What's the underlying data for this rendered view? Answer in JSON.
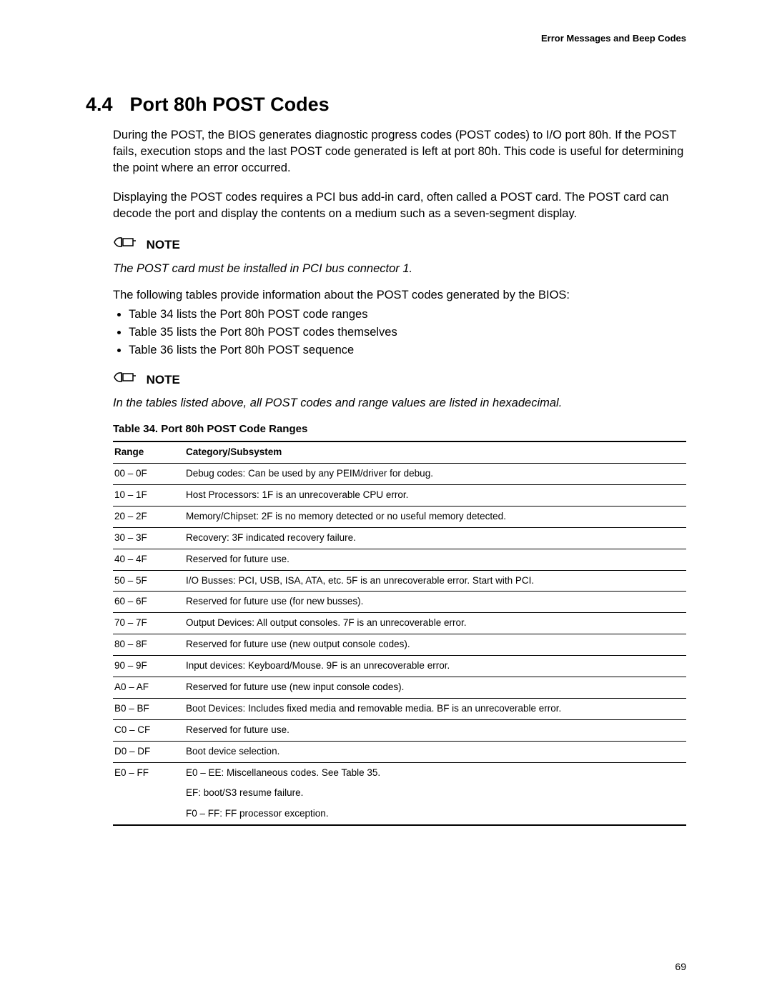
{
  "running_header": "Error Messages and Beep Codes",
  "section": {
    "number": "4.4",
    "title": "Port 80h POST Codes"
  },
  "paragraphs": {
    "p1": "During the POST, the BIOS generates diagnostic progress codes (POST codes) to I/O port 80h.  If the POST fails, execution stops and the last POST code generated is left at port 80h.  This code is useful for determining the point where an error occurred.",
    "p2": "Displaying the POST codes requires a PCI bus add-in card, often called a POST card.  The POST card can decode the port and display the contents on a medium such as a seven-segment display.",
    "p3": "The following tables provide information about the POST codes generated by the BIOS:"
  },
  "note_label": "NOTE",
  "note1_text": "The POST card must be installed in PCI bus connector 1.",
  "note2_text": "In the tables listed above, all POST codes and range values are listed in hexadecimal.",
  "bullets": [
    "Table 34 lists the Port 80h POST code ranges",
    "Table 35 lists the Port 80h POST codes themselves",
    "Table 36 lists the Port 80h POST sequence"
  ],
  "table": {
    "caption": "Table 34.  Port 80h POST Code Ranges",
    "headers": {
      "col1": "Range",
      "col2": "Category/Subsystem"
    },
    "rows": [
      {
        "range": "00 – 0F",
        "desc": "Debug codes:  Can be used by any PEIM/driver for debug."
      },
      {
        "range": "10 – 1F",
        "desc": "Host Processors:  1F is an unrecoverable CPU error."
      },
      {
        "range": "20 – 2F",
        "desc": "Memory/Chipset:  2F is no memory detected or no useful memory detected."
      },
      {
        "range": "30 – 3F",
        "desc": "Recovery:  3F indicated recovery failure."
      },
      {
        "range": "40 – 4F",
        "desc": "Reserved for future use."
      },
      {
        "range": "50 – 5F",
        "desc": "I/O Busses:  PCI, USB, ISA, ATA, etc.  5F is an unrecoverable error.  Start with PCI."
      },
      {
        "range": "60 – 6F",
        "desc": "Reserved for future use (for new busses)."
      },
      {
        "range": "70 – 7F",
        "desc": "Output Devices:  All output consoles. 7F is an unrecoverable error."
      },
      {
        "range": "80 – 8F",
        "desc": "Reserved for future use (new output console codes)."
      },
      {
        "range": "90 – 9F",
        "desc": "Input devices:  Keyboard/Mouse.  9F is an unrecoverable error."
      },
      {
        "range": "A0 – AF",
        "desc": "Reserved for future use (new input console codes)."
      },
      {
        "range": "B0 – BF",
        "desc": "Boot Devices:  Includes fixed media and removable media.  BF is an unrecoverable error."
      },
      {
        "range": "C0 – CF",
        "desc": "Reserved for future use."
      },
      {
        "range": "D0 – DF",
        "desc": "Boot device selection."
      }
    ],
    "last_group": {
      "range": "E0 – FF",
      "lines": [
        "E0 – EE:  Miscellaneous codes. See Table 35.",
        "EF: boot/S3  resume failure.",
        "F0 – FF:  FF processor exception."
      ]
    }
  },
  "page_number": "69"
}
